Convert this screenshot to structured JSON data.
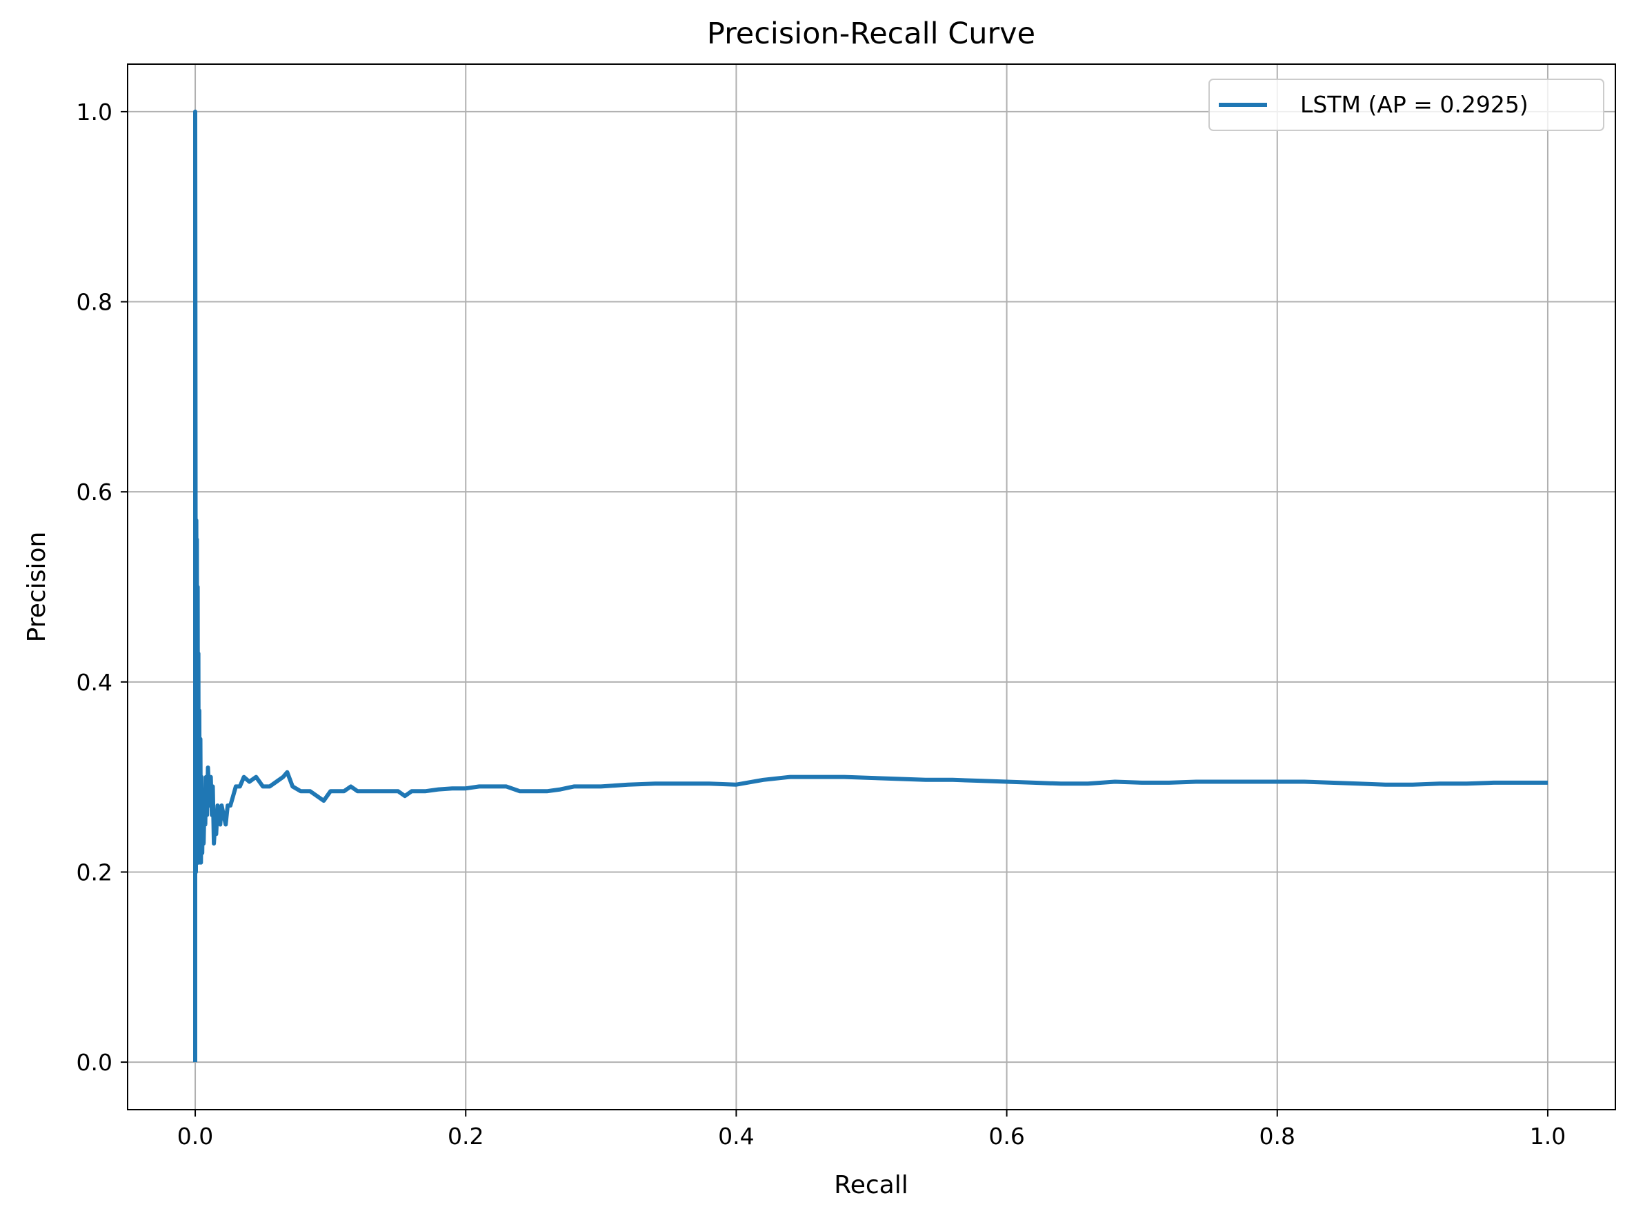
{
  "chart_data": {
    "type": "line",
    "title": "Precision-Recall Curve",
    "xlabel": "Recall",
    "ylabel": "Precision",
    "xlim": [
      -0.05,
      1.05
    ],
    "ylim": [
      -0.05,
      1.05
    ],
    "xticks": [
      0.0,
      0.2,
      0.4,
      0.6,
      0.8,
      1.0
    ],
    "yticks": [
      0.0,
      0.2,
      0.4,
      0.6,
      0.8,
      1.0
    ],
    "xtick_labels": [
      "0.0",
      "0.2",
      "0.4",
      "0.6",
      "0.8",
      "1.0"
    ],
    "ytick_labels": [
      "0.0",
      "0.2",
      "0.4",
      "0.6",
      "0.8",
      "1.0"
    ],
    "grid": true,
    "legend_position": "top-right",
    "series": [
      {
        "name": "LSTM (AP = 0.2925)",
        "color": "#1f77b4",
        "x": [
          0,
          0,
          0.0005,
          0.0008,
          0.001,
          0.0012,
          0.0015,
          0.0018,
          0.002,
          0.0023,
          0.0026,
          0.003,
          0.0034,
          0.0038,
          0.0042,
          0.0047,
          0.0052,
          0.0057,
          0.0062,
          0.0068,
          0.0074,
          0.008,
          0.0087,
          0.0094,
          0.01,
          0.0108,
          0.0115,
          0.0123,
          0.013,
          0.0138,
          0.0146,
          0.0155,
          0.0165,
          0.0175,
          0.0185,
          0.0195,
          0.021,
          0.0225,
          0.024,
          0.026,
          0.028,
          0.03,
          0.033,
          0.036,
          0.04,
          0.045,
          0.05,
          0.055,
          0.06,
          0.065,
          0.068,
          0.072,
          0.078,
          0.085,
          0.09,
          0.095,
          0.1,
          0.11,
          0.115,
          0.12,
          0.13,
          0.14,
          0.15,
          0.155,
          0.16,
          0.17,
          0.18,
          0.19,
          0.2,
          0.21,
          0.22,
          0.23,
          0.24,
          0.25,
          0.26,
          0.27,
          0.28,
          0.3,
          0.32,
          0.34,
          0.36,
          0.38,
          0.4,
          0.42,
          0.44,
          0.46,
          0.48,
          0.5,
          0.52,
          0.54,
          0.56,
          0.58,
          0.6,
          0.62,
          0.64,
          0.66,
          0.68,
          0.7,
          0.72,
          0.74,
          0.76,
          0.78,
          0.8,
          0.82,
          0.84,
          0.86,
          0.88,
          0.9,
          0.92,
          0.94,
          0.96,
          0.98,
          1.0
        ],
        "y": [
          0.0,
          1.0,
          0.2,
          0.57,
          0.25,
          0.55,
          0.22,
          0.5,
          0.23,
          0.43,
          0.21,
          0.37,
          0.22,
          0.34,
          0.21,
          0.3,
          0.22,
          0.28,
          0.23,
          0.27,
          0.25,
          0.3,
          0.26,
          0.31,
          0.29,
          0.27,
          0.3,
          0.26,
          0.29,
          0.23,
          0.25,
          0.24,
          0.27,
          0.26,
          0.25,
          0.27,
          0.26,
          0.25,
          0.27,
          0.27,
          0.28,
          0.29,
          0.29,
          0.3,
          0.295,
          0.3,
          0.29,
          0.29,
          0.295,
          0.3,
          0.305,
          0.29,
          0.285,
          0.285,
          0.28,
          0.275,
          0.285,
          0.285,
          0.29,
          0.285,
          0.285,
          0.285,
          0.285,
          0.28,
          0.285,
          0.285,
          0.287,
          0.288,
          0.288,
          0.29,
          0.29,
          0.29,
          0.285,
          0.285,
          0.285,
          0.287,
          0.29,
          0.29,
          0.292,
          0.293,
          0.293,
          0.293,
          0.292,
          0.297,
          0.3,
          0.3,
          0.3,
          0.299,
          0.298,
          0.297,
          0.297,
          0.296,
          0.295,
          0.294,
          0.293,
          0.293,
          0.295,
          0.294,
          0.294,
          0.295,
          0.295,
          0.295,
          0.295,
          0.295,
          0.294,
          0.293,
          0.292,
          0.292,
          0.293,
          0.293,
          0.294,
          0.294,
          0.294
        ]
      }
    ]
  }
}
